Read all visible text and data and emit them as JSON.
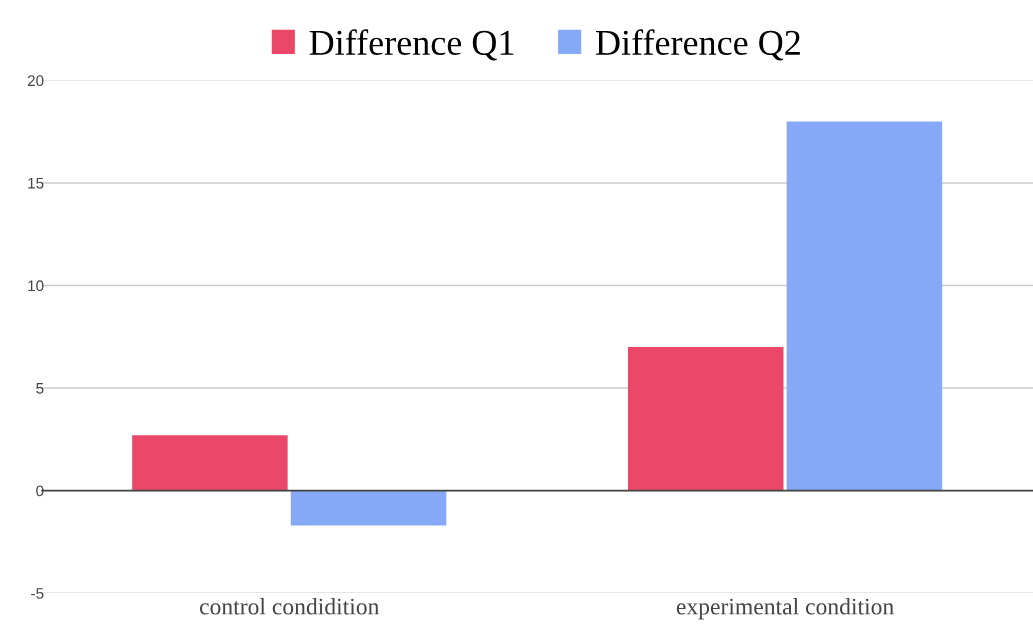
{
  "chart_data": {
    "type": "bar",
    "categories": [
      "control condidition",
      "experimental condition"
    ],
    "series": [
      {
        "name": "Difference Q1",
        "color": "#eb4869",
        "values": [
          2.7,
          7
        ]
      },
      {
        "name": "Difference Q2",
        "color": "#86a9f7",
        "values": [
          -1.7,
          18
        ]
      }
    ],
    "ylim": [
      -5,
      20
    ],
    "yticks": [
      -5,
      0,
      5,
      10,
      15,
      20
    ],
    "grid": "y",
    "legend": "top"
  }
}
